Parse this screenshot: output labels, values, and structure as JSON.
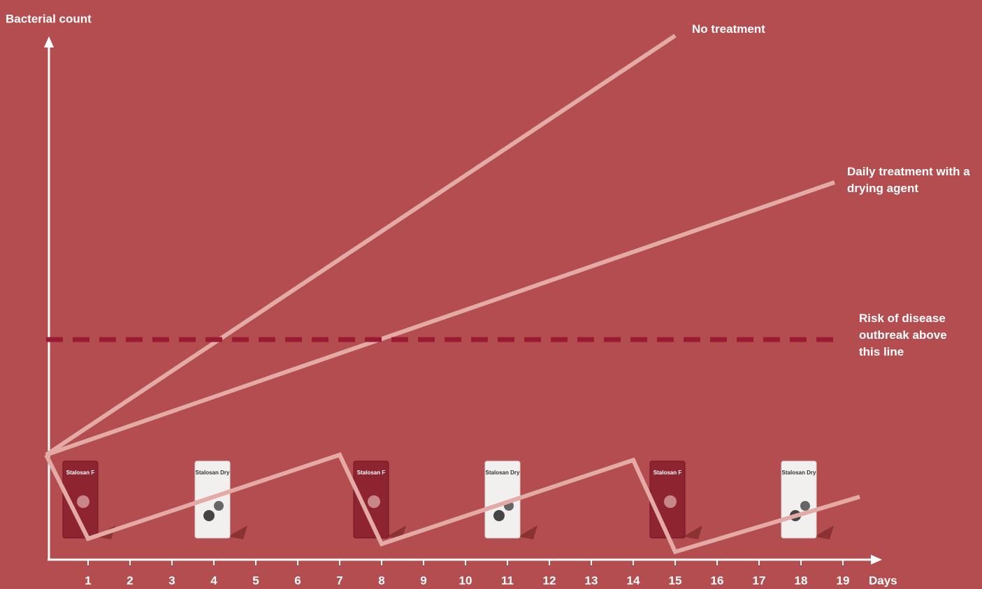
{
  "chart_data": {
    "type": "line",
    "y_label": "Bacterial count",
    "x_label": "Days",
    "xlim": [
      0,
      20
    ],
    "ylim": [
      0,
      110
    ],
    "xticks": [
      1,
      2,
      3,
      4,
      5,
      6,
      7,
      8,
      9,
      10,
      11,
      12,
      13,
      14,
      15,
      16,
      17,
      18,
      19
    ],
    "series": [
      {
        "name": "No treatment",
        "color": "#e3aaa6",
        "x": [
          0,
          15
        ],
        "values": [
          20,
          100
        ]
      },
      {
        "name": "Daily treatment with a drying agent",
        "color": "#e3aaa6",
        "x": [
          0,
          18.8
        ],
        "values": [
          20,
          72
        ]
      },
      {
        "name": "Risk of disease outbreak above this line",
        "color": "#9b1b35",
        "dashed": true,
        "x": [
          0,
          18.8
        ],
        "values": [
          42,
          42
        ]
      },
      {
        "name": null,
        "color": "#e3aaa6",
        "x": [
          0,
          1,
          7,
          8,
          14,
          15,
          19.4
        ],
        "values": [
          20,
          4,
          20,
          3,
          19,
          1.5,
          12
        ]
      }
    ],
    "products": [
      "Stalosan F",
      "Stalosan Dry",
      "Stalosan F",
      "Stalosan Dry",
      "Stalosan F",
      "Stalosan Dry"
    ]
  }
}
